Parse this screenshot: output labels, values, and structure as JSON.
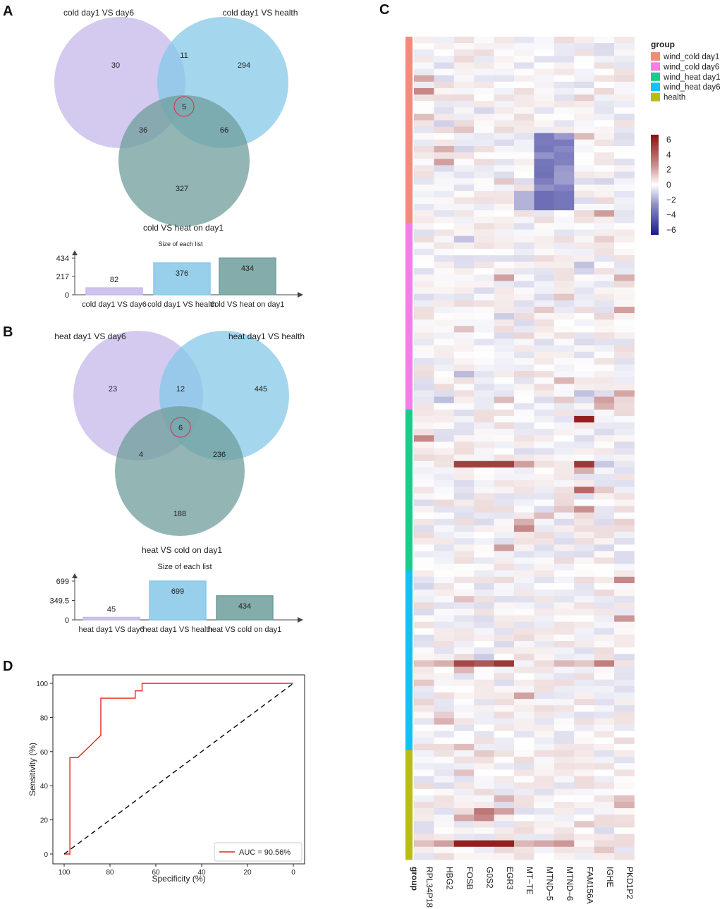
{
  "panels": {
    "A": "A",
    "B": "B",
    "C": "C",
    "D": "D"
  },
  "chart_data": [
    {
      "type": "venn",
      "panel": "A",
      "sets": [
        "cold day1 VS day6",
        "cold day1 VS health",
        "cold VS heat on day1"
      ],
      "regions": {
        "only_1": 30,
        "only_2": 294,
        "only_3": 327,
        "1_2": 11,
        "1_3": 36,
        "2_3": 66,
        "1_2_3": 5
      },
      "colors": [
        "#c5b8ea",
        "#86c8e8",
        "#6f9e9b"
      ]
    },
    {
      "type": "bar",
      "panel": "A",
      "title": "Size of each list",
      "categories": [
        "cold day1 VS day6",
        "cold day1 VS health",
        "cold VS heat on day1"
      ],
      "values": [
        82,
        376,
        434
      ],
      "yticks": [
        0,
        217,
        434
      ],
      "ytick_labels": [
        "0",
        "217",
        "434"
      ],
      "ylim": [
        0,
        434
      ]
    },
    {
      "type": "venn",
      "panel": "B",
      "sets": [
        "heat day1 VS day6",
        "heat day1 VS health",
        "heat VS cold on day1"
      ],
      "regions": {
        "only_1": 23,
        "only_2": 445,
        "only_3": 188,
        "1_2": 12,
        "1_3": 4,
        "2_3": 236,
        "1_2_3": 6
      },
      "colors": [
        "#c5b8ea",
        "#86c8e8",
        "#6f9e9b"
      ]
    },
    {
      "type": "bar",
      "panel": "B",
      "title": "Size of each list",
      "categories": [
        "heat day1 VS day6",
        "heat day1 VS health",
        "heat VS cold on day1"
      ],
      "values": [
        45,
        699,
        434
      ],
      "yticks": [
        0,
        349.5,
        699
      ],
      "ytick_labels": [
        "0",
        "349.5",
        "699"
      ],
      "ylim": [
        0,
        699
      ]
    },
    {
      "type": "heatmap",
      "panel": "C",
      "genes": [
        "RPL34P18",
        "HBG2",
        "FOSB",
        "G0S2",
        "EGR3",
        "MT−TE",
        "MTND−5",
        "MTND−6",
        "FAM156A",
        "IGHE",
        "PKD1P2"
      ],
      "group_axis_label": "group",
      "legend_title": "group",
      "groups": [
        {
          "name": "wind_cold day1",
          "color": "#f48a7c",
          "n": 29
        },
        {
          "name": "wind_cold day6",
          "color": "#f47ee8",
          "n": 29
        },
        {
          "name": "wind_heat day1",
          "color": "#18cc8a",
          "n": 25
        },
        {
          "name": "wind_heat day6",
          "color": "#13c1f2",
          "n": 28
        },
        {
          "name": "health",
          "color": "#b9bc13",
          "n": 17
        }
      ],
      "color_scale": {
        "min": -6,
        "max": 6,
        "ticks": [
          "6",
          "4",
          "2",
          "0",
          "−2",
          "−4",
          "−6"
        ],
        "low": "#1a1a8c",
        "mid": "#ffffff",
        "high": "#8b0f0f"
      }
    },
    {
      "type": "line",
      "panel": "D",
      "xlabel": "Specificity (%)",
      "ylabel": "Sensitivity (%)",
      "xlim": [
        100,
        0
      ],
      "ylim": [
        0,
        100
      ],
      "xticks": [
        100,
        80,
        60,
        40,
        20,
        0
      ],
      "yticks": [
        0,
        20,
        40,
        60,
        80,
        100
      ],
      "legend": "AUC = 90.56%",
      "series": [
        {
          "name": "AUC = 90.56%",
          "color": "#e8211c",
          "x": [
            100,
            97.5,
            97.5,
            94,
            84,
            84,
            69,
            69,
            66,
            66,
            0
          ],
          "y": [
            0,
            0,
            56.5,
            56.5,
            69.5,
            91.3,
            91.3,
            95.6,
            95.6,
            100,
            100
          ]
        },
        {
          "name": "reference",
          "color": "#000000",
          "dash": true,
          "x": [
            100,
            0
          ],
          "y": [
            0,
            100
          ]
        }
      ]
    }
  ]
}
